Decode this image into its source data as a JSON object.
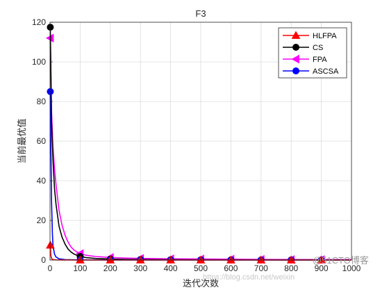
{
  "chart_data": {
    "type": "line",
    "title": "F3",
    "xlabel": "迭代次数",
    "ylabel": "当前最优值",
    "xlim": [
      0,
      1000
    ],
    "ylim": [
      0,
      120
    ],
    "xticks": [
      0,
      100,
      200,
      300,
      400,
      500,
      600,
      700,
      800,
      900,
      1000
    ],
    "yticks": [
      0,
      20,
      40,
      60,
      80,
      100,
      120
    ],
    "grid": true,
    "legend_position": "top-right",
    "marker_x": [
      1,
      100,
      200,
      300,
      400,
      500,
      600,
      700,
      800,
      900
    ],
    "series": [
      {
        "name": "HLFPA",
        "color": "#ff0000",
        "marker": "triangle",
        "x": [
          1,
          3,
          6,
          10,
          20,
          50,
          100,
          200,
          300,
          400,
          500,
          600,
          700,
          800,
          900,
          1000
        ],
        "values": [
          7.5,
          2.0,
          0.6,
          0.2,
          0.05,
          0.01,
          0,
          0,
          0,
          0,
          0,
          0,
          0,
          0,
          0,
          0
        ]
      },
      {
        "name": "CS",
        "color": "#000000",
        "marker": "circle",
        "x": [
          1,
          5,
          10,
          15,
          20,
          30,
          40,
          50,
          60,
          70,
          80,
          90,
          100,
          120,
          150,
          200,
          250,
          300,
          400,
          500,
          600,
          700,
          800,
          900,
          1000
        ],
        "values": [
          117.5,
          70,
          50,
          36,
          28,
          17,
          11.5,
          8,
          5.5,
          4,
          3,
          2.3,
          1.8,
          1.2,
          0.8,
          0.5,
          0.35,
          0.25,
          0.15,
          0.1,
          0.07,
          0.05,
          0.03,
          0.02,
          0.02
        ]
      },
      {
        "name": "FPA",
        "color": "#ff00ff",
        "marker": "triangle-left",
        "x": [
          1,
          5,
          10,
          15,
          20,
          30,
          40,
          50,
          60,
          70,
          80,
          90,
          100,
          120,
          150,
          200,
          250,
          300,
          400,
          500,
          600,
          700,
          800,
          900,
          1000
        ],
        "values": [
          112,
          75,
          57,
          46,
          38,
          25,
          17.5,
          12.5,
          9,
          6.5,
          5,
          4,
          3.2,
          2.4,
          1.8,
          1.3,
          1.0,
          0.8,
          0.6,
          0.5,
          0.4,
          0.3,
          0.25,
          0.2,
          0.2
        ]
      },
      {
        "name": "ASCSA",
        "color": "#0000ff",
        "marker": "circle",
        "x": [
          1,
          3,
          5,
          8,
          10,
          15,
          20,
          30,
          50,
          100,
          200,
          300,
          400,
          500,
          600,
          700,
          800,
          900,
          1000
        ],
        "values": [
          85,
          55,
          30,
          13,
          7,
          3,
          1.5,
          0.6,
          0.2,
          0.05,
          0.02,
          0.01,
          0,
          0,
          0,
          0,
          0,
          0,
          0
        ]
      }
    ]
  },
  "watermark": {
    "left": "https://blog.csdn.net/weixin",
    "right": "@51CTO博客"
  }
}
